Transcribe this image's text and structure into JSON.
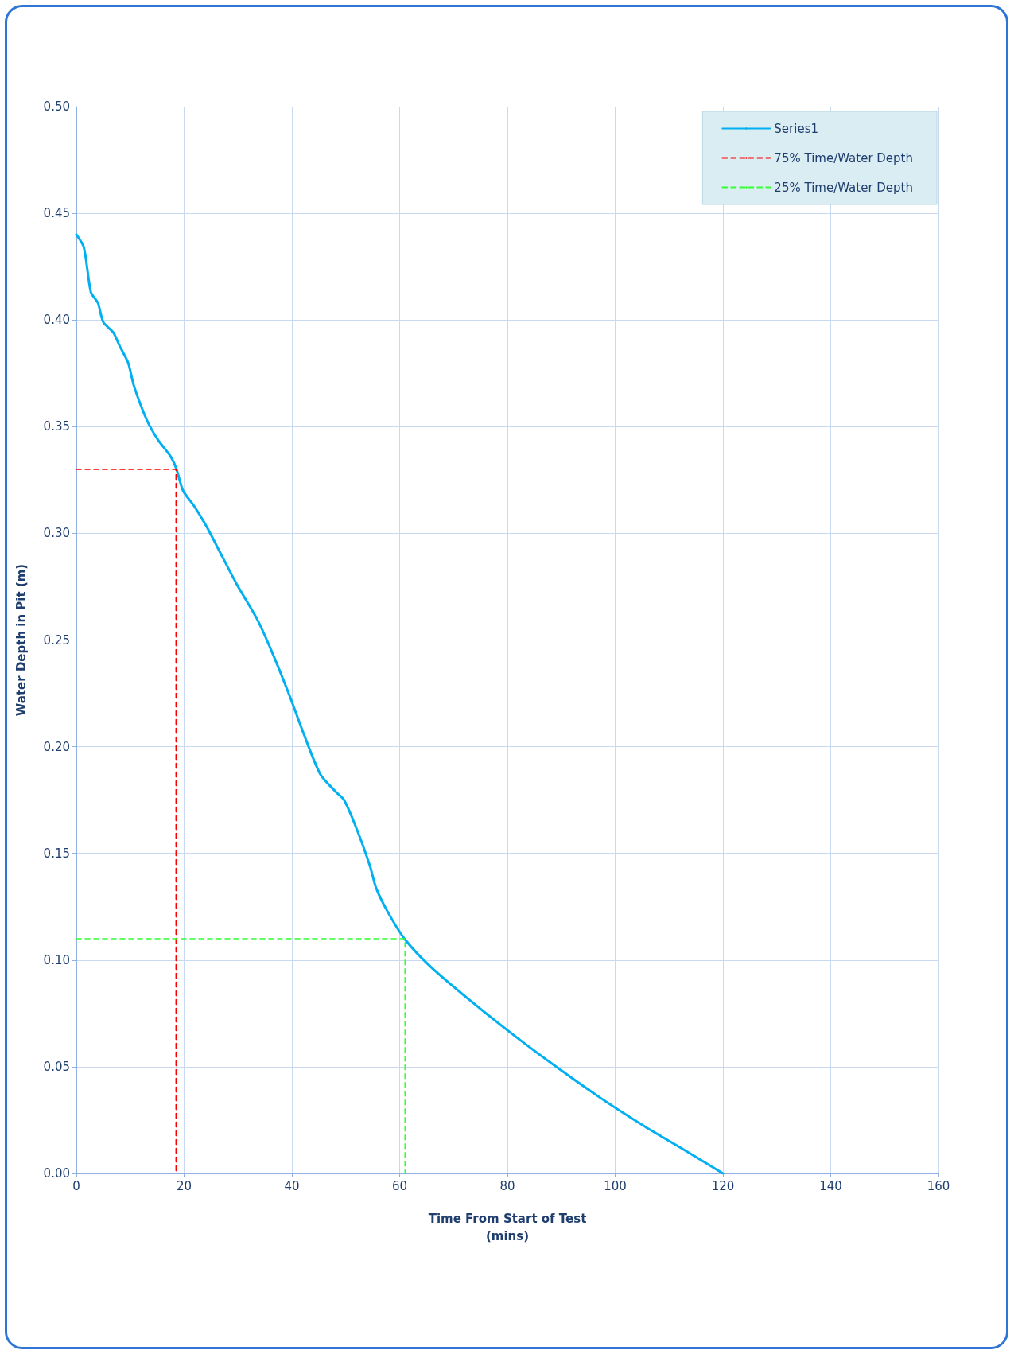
{
  "chart_data": {
    "type": "line",
    "xlabel": "Time From Start of Test\n(mins)",
    "ylabel": "Water Depth in Pit (m)",
    "xlim": [
      0,
      160
    ],
    "xticks": [
      0,
      20,
      40,
      60,
      80,
      100,
      120,
      140,
      160
    ],
    "ylim": [
      0,
      0.5
    ],
    "yticks": [
      {
        "value": 0,
        "label": "0.00"
      },
      {
        "value": 0.05,
        "label": "0.05"
      },
      {
        "value": 0.1,
        "label": "0.10"
      },
      {
        "value": 0.15,
        "label": "0.15"
      },
      {
        "value": 0.2,
        "label": "0.20"
      },
      {
        "value": 0.25,
        "label": "0.25"
      },
      {
        "value": 0.3,
        "label": "0.30"
      },
      {
        "value": 0.35,
        "label": "0.35"
      },
      {
        "value": 0.4,
        "label": "0.40"
      },
      {
        "value": 0.45,
        "label": "0.45"
      },
      {
        "value": 0.5,
        "label": "0.50"
      }
    ],
    "grid": true,
    "legend": "top right",
    "marker": "none",
    "series": [
      {
        "name": "Series1",
        "color": "#00b0f0",
        "line_style": "solid",
        "x": [
          0,
          1.4,
          2.7,
          4.0,
          5.0,
          6.9,
          8.0,
          9.6,
          10.7,
          13.1,
          15.1,
          17.5,
          18.6,
          19.8,
          21.8,
          24.2,
          27.1,
          29.8,
          33.5,
          36.2,
          39.4,
          42.5,
          45.3,
          48.1,
          49.7,
          52.1,
          54.5,
          55.6,
          57.7,
          60.9,
          65.7,
          73.6,
          81.6,
          89.6,
          97.5,
          105.5,
          113.5,
          120
        ],
        "values": [
          0.44,
          0.434,
          0.413,
          0.408,
          0.399,
          0.394,
          0.388,
          0.38,
          0.369,
          0.353,
          0.344,
          0.336,
          0.33,
          0.32,
          0.313,
          0.303,
          0.289,
          0.276,
          0.26,
          0.245,
          0.225,
          0.204,
          0.187,
          0.179,
          0.175,
          0.161,
          0.144,
          0.134,
          0.123,
          0.11,
          0.097,
          0.08,
          0.064,
          0.049,
          0.035,
          0.022,
          0.01,
          0
        ]
      },
      {
        "name": "75% Time/Water Depth",
        "color": "#ff0000",
        "line_style": "dashed",
        "x": [
          0,
          18.5,
          18.5
        ],
        "values": [
          0.33,
          0.33,
          0
        ]
      },
      {
        "name": "25% Time/Water Depth",
        "color": "#33ff33",
        "line_style": "dashed",
        "x": [
          0,
          61,
          61
        ],
        "values": [
          0.11,
          0.11,
          0
        ]
      }
    ]
  }
}
